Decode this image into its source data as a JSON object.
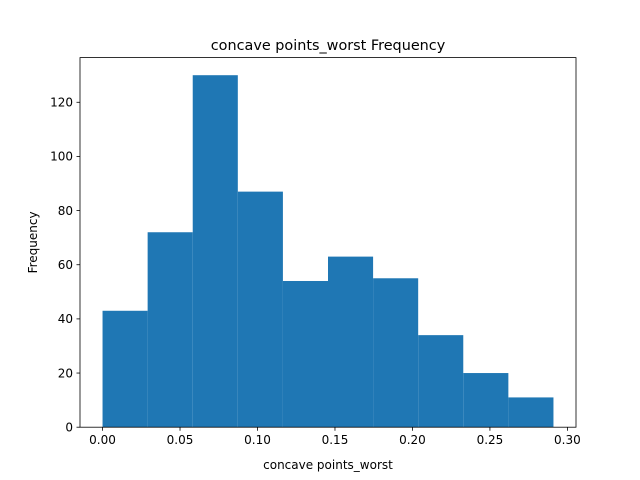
{
  "chart_data": {
    "type": "bar",
    "title": "concave points_worst Frequency",
    "xlabel": "concave points_worst",
    "ylabel": "Frequency",
    "bin_edges": [
      0.0,
      0.0291,
      0.0582,
      0.0873,
      0.1164,
      0.1455,
      0.1746,
      0.2037,
      0.2328,
      0.2619,
      0.291
    ],
    "values": [
      43,
      72,
      130,
      87,
      54,
      63,
      55,
      34,
      20,
      11
    ],
    "xlim": [
      -0.01455,
      0.30555
    ],
    "ylim": [
      0,
      136.5
    ],
    "xticks": [
      0.0,
      0.05,
      0.1,
      0.15,
      0.2,
      0.25,
      0.3
    ],
    "xtick_labels": [
      "0.00",
      "0.05",
      "0.10",
      "0.15",
      "0.20",
      "0.25",
      "0.30"
    ],
    "yticks": [
      0,
      20,
      40,
      60,
      80,
      100,
      120
    ],
    "ytick_labels": [
      "0",
      "20",
      "40",
      "60",
      "80",
      "100",
      "120"
    ],
    "bar_color": "#1f77b4",
    "grid": false
  }
}
